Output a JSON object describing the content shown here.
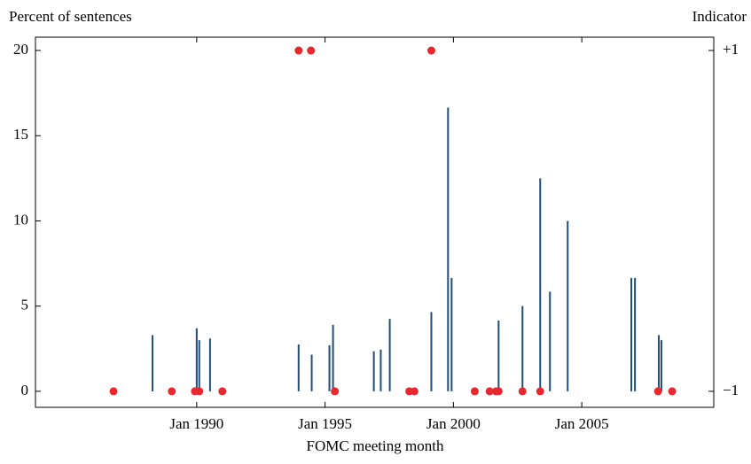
{
  "chart_data": {
    "type": "bar",
    "y_label": "Percent of sentences",
    "y2_label": "Indicator",
    "x_label": "FOMC meeting month",
    "xlim": [
      1983.72,
      2010.14
    ],
    "xticks": [
      {
        "value": 1990,
        "label": "Jan 1990"
      },
      {
        "value": 1995,
        "label": "Jan 1995"
      },
      {
        "value": 2000,
        "label": "Jan 2000"
      },
      {
        "value": 2005,
        "label": "Jan 2005"
      }
    ],
    "ylim": [
      -0.94,
      20.78
    ],
    "yticks": [
      0,
      5,
      10,
      15,
      20
    ],
    "y2lim": [
      -1.094,
      1.078
    ],
    "y2ticks": [
      {
        "value": 1,
        "label": "+1"
      },
      {
        "value": -1,
        "label": "−1"
      }
    ],
    "series": [
      {
        "color": "#1f4e79",
        "x": [
          1988.28,
          1990.0,
          1990.1,
          1990.52,
          1993.97,
          1994.48,
          1995.17,
          1995.31,
          1996.9,
          1997.17,
          1997.52,
          1999.14,
          1999.79,
          1999.93,
          2001.76,
          2002.69,
          2003.38,
          2003.76,
          2004.45,
          2006.93,
          2007.07,
          2008.0,
          2008.1
        ],
        "values": [
          3.3,
          3.7,
          3.0,
          3.1,
          2.75,
          2.15,
          2.7,
          3.9,
          2.35,
          2.45,
          4.25,
          4.65,
          16.65,
          6.65,
          4.15,
          5.0,
          12.5,
          5.85,
          10.0,
          6.65,
          6.65,
          3.3,
          3.0
        ]
      },
      {
        "color": "#e8282e",
        "axis": "y2",
        "x": [
          1986.76,
          1989.03,
          1989.93,
          1990.1,
          1991.0,
          1993.97,
          1994.45,
          1995.38,
          1998.28,
          1998.48,
          1999.14,
          2000.83,
          2001.41,
          2001.66,
          2001.76,
          2002.69,
          2003.38,
          2007.97,
          2008.52
        ],
        "values": [
          -1,
          -1,
          -1,
          -1,
          -1,
          1,
          1,
          -1,
          -1,
          -1,
          1,
          -1,
          -1,
          -1,
          -1,
          -1,
          -1,
          -1,
          -1
        ]
      }
    ]
  }
}
